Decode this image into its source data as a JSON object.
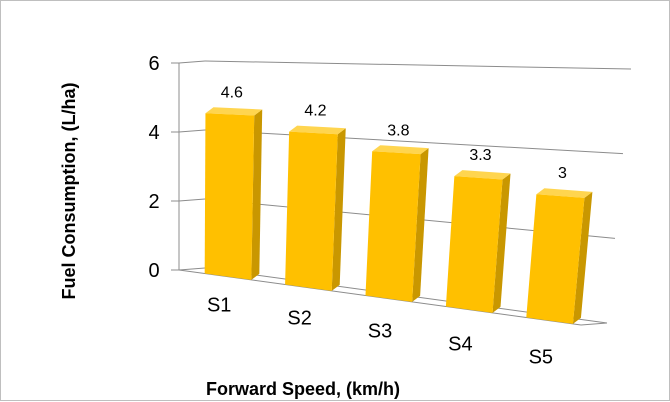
{
  "chart_data": {
    "type": "bar",
    "title": "",
    "categories": [
      "S1",
      "S2",
      "S3",
      "S4",
      "S5"
    ],
    "values": [
      4.6,
      4.2,
      3.8,
      3.3,
      3.0
    ],
    "data_labels": [
      "4.6",
      "4.2",
      "3.8",
      "3.3",
      "3"
    ],
    "xlabel": "Forward Speed, (km/h)",
    "ylabel": "Fuel Consumption, (L/ha)",
    "ylim": [
      0,
      6
    ],
    "yticks": [
      "0",
      "2",
      "4",
      "6"
    ],
    "grid": true,
    "legend": "none",
    "style": "3d-column",
    "colors": {
      "bar_front": "#FFC000",
      "bar_side": "#C99700",
      "bar_top": "#FFD54F",
      "grid": "#8c8c8c",
      "frame": "#bfbfbf"
    }
  }
}
